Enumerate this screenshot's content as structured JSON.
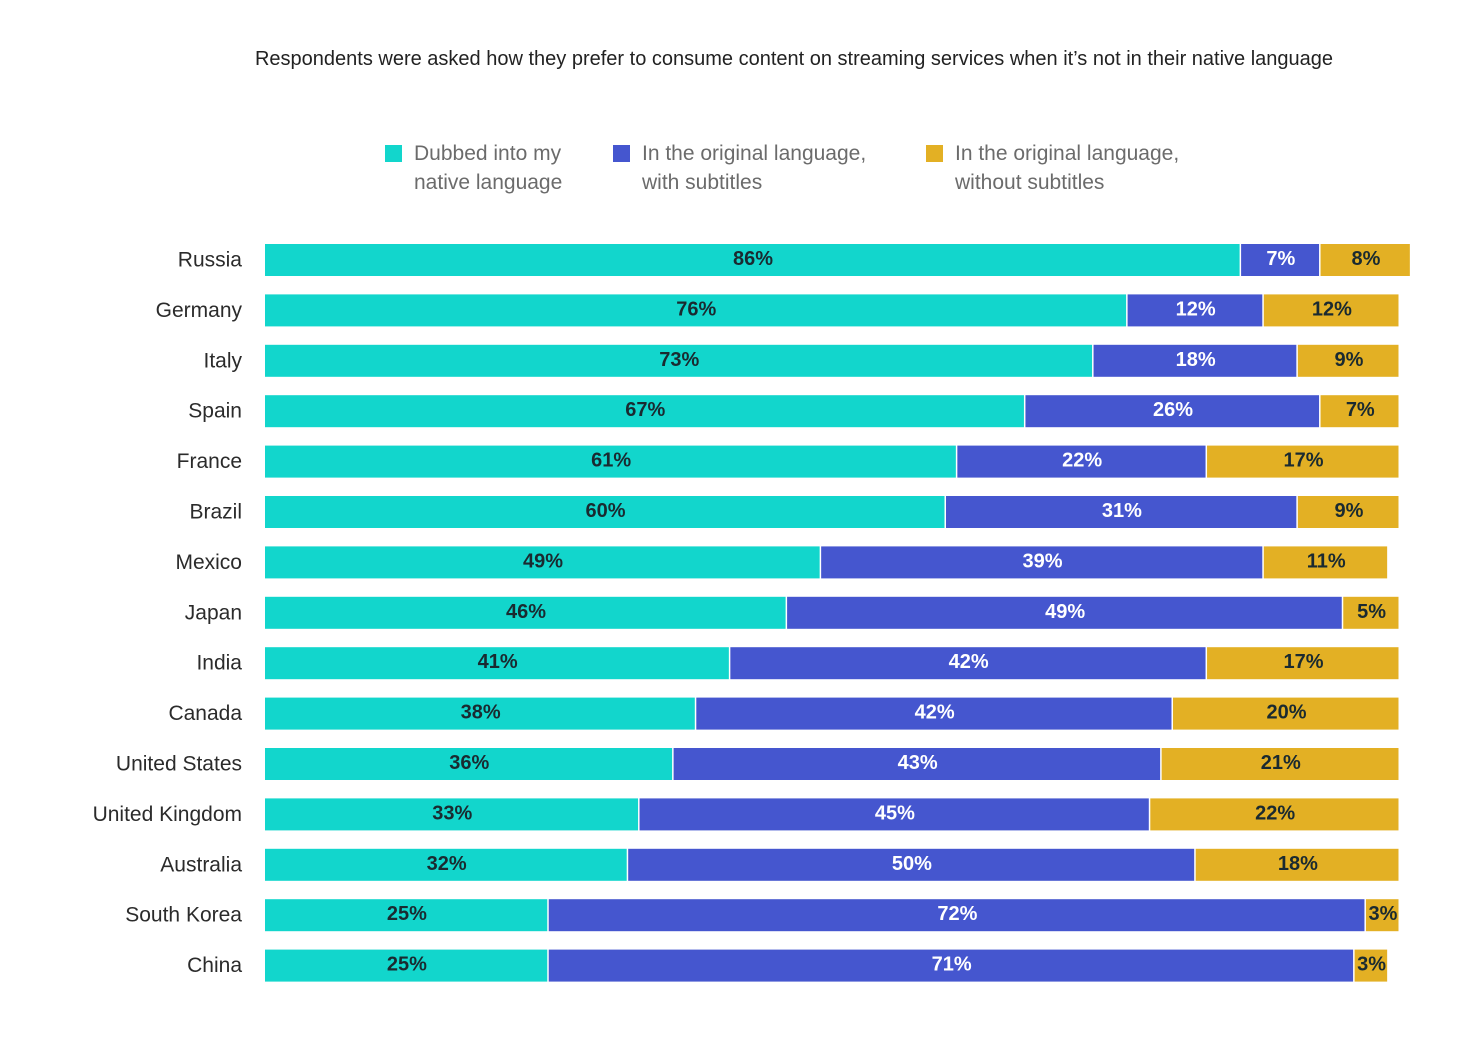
{
  "title": "Respondents were asked how they prefer to consume content on streaming services when it’s not in their native language",
  "legend": [
    {
      "line1": "Dubbed into my",
      "line2": "native language",
      "color": "#12D6CC"
    },
    {
      "line1": "In the original language,",
      "line2": "with subtitles",
      "color": "#4556CF"
    },
    {
      "line1": "In the original language,",
      "line2": "without subtitles",
      "color": "#E3B024"
    }
  ],
  "chart_data": {
    "type": "bar",
    "orientation": "horizontal",
    "stacked": true,
    "value_suffix": "%",
    "title": "Respondents were asked how they prefer to consume content on streaming services when it’s not in their native language",
    "categories": [
      "Russia",
      "Germany",
      "Italy",
      "Spain",
      "France",
      "Brazil",
      "Mexico",
      "Japan",
      "India",
      "Canada",
      "United States",
      "United Kingdom",
      "Australia",
      "South Korea",
      "China"
    ],
    "series": [
      {
        "name": "Dubbed into my native language",
        "color": "#12D6CC",
        "label_color": "#1a2a30",
        "values": [
          86,
          76,
          73,
          67,
          61,
          60,
          49,
          46,
          41,
          38,
          36,
          33,
          32,
          25,
          25
        ]
      },
      {
        "name": "In the original language, with subtitles",
        "color": "#4556CF",
        "label_color": "#ffffff",
        "values": [
          7,
          12,
          18,
          26,
          22,
          31,
          39,
          49,
          42,
          42,
          43,
          45,
          50,
          72,
          71
        ]
      },
      {
        "name": "In the original language, without subtitles",
        "color": "#E3B024",
        "label_color": "#1a2a30",
        "values": [
          8,
          12,
          9,
          7,
          17,
          9,
          11,
          5,
          17,
          20,
          21,
          22,
          18,
          3,
          3
        ]
      }
    ],
    "xlim": [
      0,
      100
    ],
    "grid": false,
    "legend_position": "top"
  }
}
